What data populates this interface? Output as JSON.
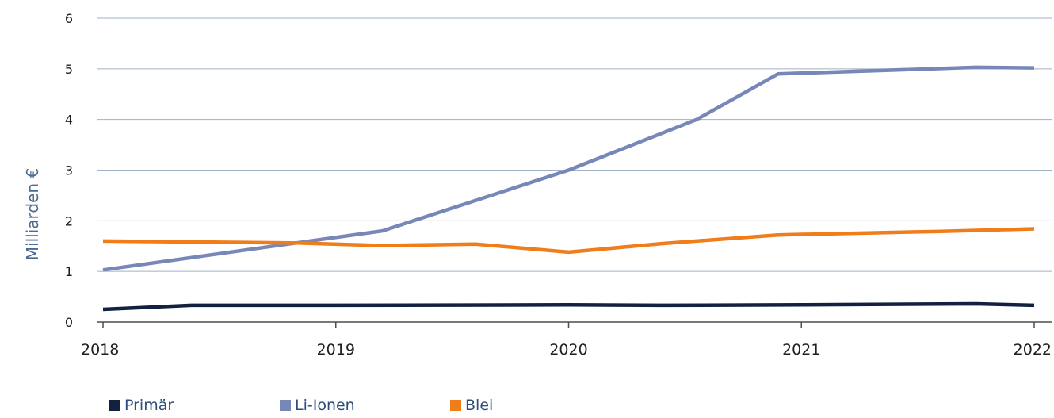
{
  "chart_data": {
    "type": "line",
    "ylabel": "Milliarden €",
    "xlabel": "",
    "title": "",
    "ylim": [
      0,
      6
    ],
    "yticks": [
      0,
      1,
      2,
      3,
      4,
      5,
      6
    ],
    "xlim": [
      2018,
      2022
    ],
    "xticks": [
      2018,
      2019,
      2020,
      2021,
      2022
    ],
    "grid": "horizontal",
    "legend_position": "bottom-left",
    "series": [
      {
        "name": "Primär",
        "color": "#12213f",
        "points": [
          {
            "x": 2018.0,
            "y": 0.25
          },
          {
            "x": 2018.38,
            "y": 0.33
          },
          {
            "x": 2019.0,
            "y": 0.33
          },
          {
            "x": 2020.0,
            "y": 0.34
          },
          {
            "x": 2020.4,
            "y": 0.33
          },
          {
            "x": 2021.0,
            "y": 0.34
          },
          {
            "x": 2021.75,
            "y": 0.36
          },
          {
            "x": 2022.0,
            "y": 0.33
          }
        ]
      },
      {
        "name": "Li-Ionen",
        "color": "#7787b8",
        "points": [
          {
            "x": 2018.0,
            "y": 1.03
          },
          {
            "x": 2019.2,
            "y": 1.8
          },
          {
            "x": 2020.0,
            "y": 3.0
          },
          {
            "x": 2020.55,
            "y": 4.0
          },
          {
            "x": 2020.9,
            "y": 4.9
          },
          {
            "x": 2021.75,
            "y": 5.03
          },
          {
            "x": 2022.0,
            "y": 5.02
          }
        ]
      },
      {
        "name": "Blei",
        "color": "#ef7d1a",
        "points": [
          {
            "x": 2018.0,
            "y": 1.6
          },
          {
            "x": 2018.85,
            "y": 1.56
          },
          {
            "x": 2019.2,
            "y": 1.51
          },
          {
            "x": 2019.6,
            "y": 1.54
          },
          {
            "x": 2020.0,
            "y": 1.38
          },
          {
            "x": 2020.4,
            "y": 1.55
          },
          {
            "x": 2020.9,
            "y": 1.72
          },
          {
            "x": 2021.6,
            "y": 1.79
          },
          {
            "x": 2022.0,
            "y": 1.84
          }
        ]
      }
    ]
  }
}
